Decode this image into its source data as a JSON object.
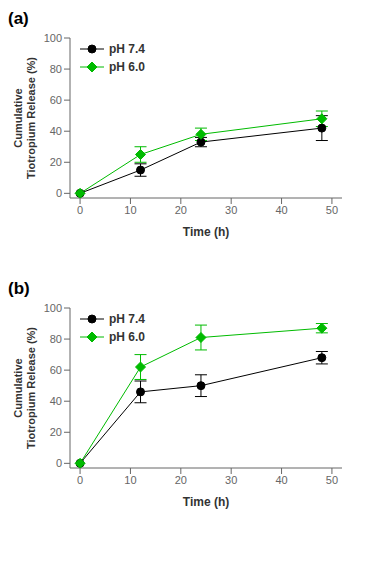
{
  "chart_data": [
    {
      "type": "line",
      "title": "(a)",
      "x": [
        0,
        12,
        24,
        48
      ],
      "xlabel": "Time (h)",
      "ylabel": "Cumulative\nTiotropium Release (%)",
      "xlim": [
        -2,
        52
      ],
      "xticks": [
        0,
        10,
        20,
        30,
        40,
        50
      ],
      "ylim": [
        -3,
        100
      ],
      "yticks": [
        0,
        20,
        40,
        60,
        80,
        100
      ],
      "grid": false,
      "legend": "upper left",
      "series": [
        {
          "name": "pH 7.4",
          "color": "#000000",
          "marker": "circle",
          "line_style": "solid",
          "values": [
            0,
            15,
            33,
            42
          ],
          "errors": [
            0,
            4,
            3,
            8
          ]
        },
        {
          "name": "pH 6.0",
          "color": "#00bb00",
          "marker": "diamond",
          "line_style": "solid",
          "values": [
            0,
            25,
            38,
            48
          ],
          "errors": [
            0,
            5,
            4,
            5
          ]
        }
      ]
    },
    {
      "type": "line",
      "title": "(b)",
      "x": [
        0,
        12,
        24,
        48
      ],
      "xlabel": "Time (h)",
      "ylabel": "Cumulative\nTiotropium Release (%)",
      "xlim": [
        -2,
        52
      ],
      "xticks": [
        0,
        10,
        20,
        30,
        40,
        50
      ],
      "ylim": [
        -3,
        100
      ],
      "yticks": [
        0,
        20,
        40,
        60,
        80,
        100
      ],
      "grid": false,
      "legend": "upper left",
      "series": [
        {
          "name": "pH 7.4",
          "color": "#000000",
          "marker": "circle",
          "line_style": "solid",
          "values": [
            0,
            46,
            50,
            68
          ],
          "errors": [
            0,
            7,
            7,
            4
          ]
        },
        {
          "name": "pH 6.0",
          "color": "#00bb00",
          "marker": "diamond",
          "line_style": "solid",
          "values": [
            0,
            62,
            81,
            87
          ],
          "errors": [
            0,
            8,
            8,
            3
          ]
        }
      ]
    }
  ]
}
